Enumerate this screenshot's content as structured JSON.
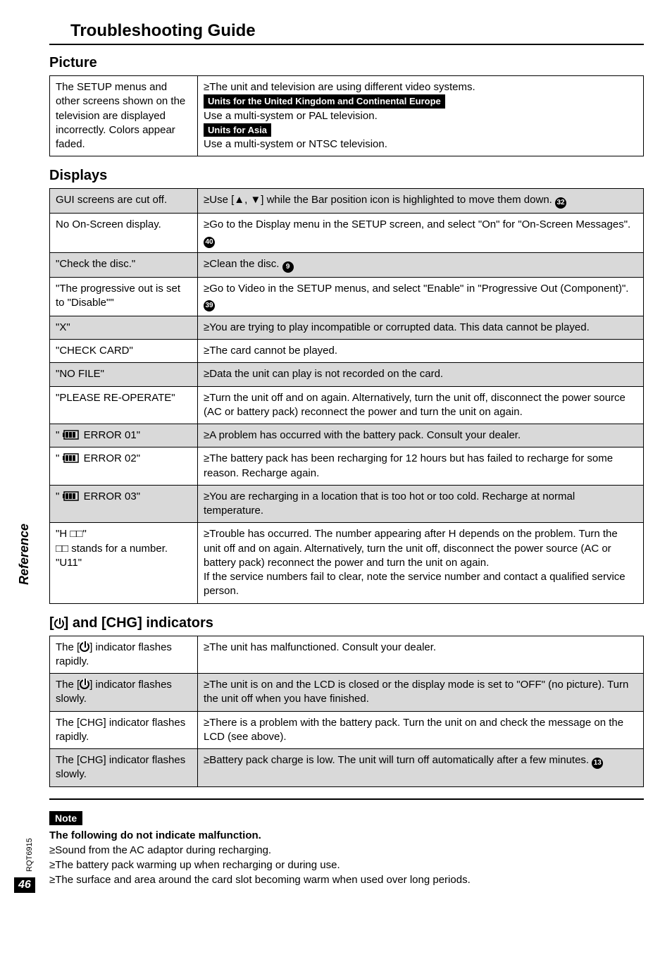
{
  "title": "Troubleshooting Guide",
  "sections": {
    "picture": {
      "heading": "Picture",
      "rows": [
        {
          "left": "The SETUP menus and other screens shown on the television are displayed incorrectly. Colors appear faded.",
          "right_lines": [
            "≥The unit and television are using different video systems.",
            "PILL:Units for the United Kingdom and Continental Europe",
            "Use a multi-system or PAL television.",
            "PILL:Units for Asia",
            "Use a multi-system or NTSC television."
          ]
        }
      ]
    },
    "displays": {
      "heading": "Displays",
      "rows": [
        {
          "shade": true,
          "left": "GUI screens are cut off.",
          "right": "≥Use [▲, ▼] while the Bar position icon is highlighted to move them down. ",
          "circ": "32"
        },
        {
          "shade": false,
          "left": "No On-Screen display.",
          "right": "≥Go to the Display menu in the SETUP screen, and select \"On\" for \"On-Screen Messages\". ",
          "circ": "40"
        },
        {
          "shade": true,
          "left": "\"Check the disc.\"",
          "right": "≥Clean the disc. ",
          "circ": "9"
        },
        {
          "shade": false,
          "left": "\"The progressive out is set to \"Disable\"\"",
          "right": "≥Go to Video in the SETUP menus, and select \"Enable\" in \"Progressive Out (Component)\". ",
          "circ": "39"
        },
        {
          "shade": true,
          "left": "\"X\"",
          "right": "≥You are trying to play incompatible or corrupted data. This data cannot be played."
        },
        {
          "shade": false,
          "left": "\"CHECK CARD\"",
          "right": "≥The card cannot be played."
        },
        {
          "shade": true,
          "left": "\"NO FILE\"",
          "right": "≥Data the unit can play is not recorded on the card."
        },
        {
          "shade": false,
          "left": "\"PLEASE RE-OPERATE\"",
          "right": "≥Turn the unit off and on again. Alternatively, turn the unit off, disconnect the power source (AC or battery pack) reconnect the power and turn the unit on again."
        },
        {
          "shade": true,
          "batt": true,
          "left": "ERROR 01\"",
          "right": "≥A problem has occurred with the battery pack. Consult your dealer."
        },
        {
          "shade": false,
          "batt": true,
          "left": "ERROR 02\"",
          "right": "≥The battery pack has been recharging for 12 hours but has failed to recharge for some reason. Recharge again."
        },
        {
          "shade": true,
          "batt": true,
          "left": "ERROR 03\"",
          "right": "≥You are recharging in a location that is too hot or too cold. Recharge at normal temperature."
        },
        {
          "shade": false,
          "left": "\"H □□\"\n□□ stands for a number.\n\"U11\"",
          "right": "≥Trouble has occurred. The number appearing after H depends on the problem. Turn the unit off and on again. Alternatively, turn the unit off, disconnect the power source (AC or battery pack) reconnect the power and turn the unit on again.\nIf the service numbers fail to clear, note the service number and contact a qualified service person."
        }
      ]
    },
    "indicators": {
      "heading_prefix": "[",
      "heading_suffix": "] and [CHG] indicators",
      "rows": [
        {
          "shade": false,
          "left_pwr": true,
          "left_suffix": " indicator flashes rapidly.",
          "right": "≥The unit has malfunctioned. Consult your dealer."
        },
        {
          "shade": true,
          "left_pwr": true,
          "left_suffix": " indicator flashes slowly.",
          "right": "≥The unit is on and the LCD is closed or the display mode is set to \"OFF\" (no picture). Turn the unit off when you have finished."
        },
        {
          "shade": false,
          "left": "The [CHG] indicator flashes rapidly.",
          "right": "≥There is a problem with the battery pack. Turn the unit on and check the message on the LCD (see above)."
        },
        {
          "shade": true,
          "left": "The [CHG] indicator flashes slowly.",
          "right": "≥Battery pack charge is low. The unit will turn off automatically after a few minutes. ",
          "circ": "13"
        }
      ]
    }
  },
  "note": {
    "label": "Note",
    "bold_line": "The following do not indicate malfunction.",
    "lines": [
      "≥Sound from the AC adaptor during recharging.",
      "≥The battery pack warming up when recharging or during use.",
      "≥The surface and area around the card slot becoming warm when used over long periods."
    ]
  },
  "side_label": "Reference",
  "rqt": "RQT6915",
  "page_number": "46"
}
